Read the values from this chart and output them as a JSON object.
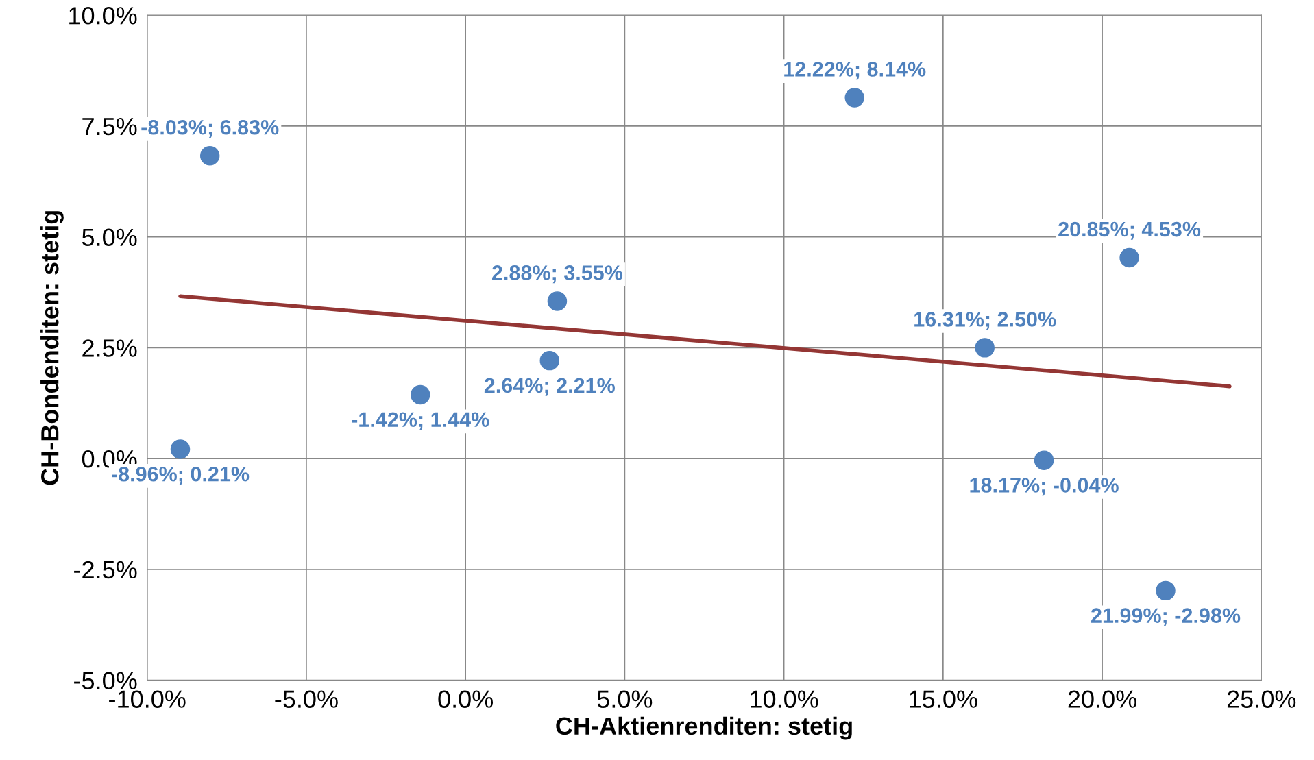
{
  "chart_data": {
    "type": "scatter",
    "xlabel": "CH-Aktienrenditen: stetig",
    "ylabel": "CH-Bondenditen: stetig",
    "xlim": [
      -10,
      25
    ],
    "ylim": [
      -5,
      10
    ],
    "xticks": [
      {
        "value": -10,
        "label": "-10.0%"
      },
      {
        "value": -5,
        "label": "-5.0%"
      },
      {
        "value": 0,
        "label": "0.0%"
      },
      {
        "value": 5,
        "label": "5.0%"
      },
      {
        "value": 10,
        "label": "10.0%"
      },
      {
        "value": 15,
        "label": "15.0%"
      },
      {
        "value": 20,
        "label": "20.0%"
      },
      {
        "value": 25,
        "label": "25.0%"
      }
    ],
    "yticks": [
      {
        "value": -5,
        "label": "-5.0%"
      },
      {
        "value": -2.5,
        "label": "-2.5%"
      },
      {
        "value": 0,
        "label": "0.0%"
      },
      {
        "value": 2.5,
        "label": "2.5%"
      },
      {
        "value": 5,
        "label": "5.0%"
      },
      {
        "value": 7.5,
        "label": "7.5%"
      },
      {
        "value": 10,
        "label": "10.0%"
      }
    ],
    "grid": true,
    "series": [
      {
        "type": "scatter",
        "marker": "circle",
        "color": "#4f81bd",
        "x": [
          -8.03,
          12.22,
          20.85,
          2.88,
          16.31,
          2.64,
          -1.42,
          -8.96,
          18.17,
          21.99
        ],
        "values": [
          6.83,
          8.14,
          4.53,
          3.55,
          2.5,
          2.21,
          1.44,
          0.21,
          -0.04,
          -2.98
        ],
        "value_labels": [
          "-8.03%; 6.83%",
          "12.22%; 8.14%",
          "20.85%; 4.53%",
          "2.88%; 3.55%",
          "16.31%; 2.50%",
          "2.64%; 2.21%",
          "-1.42%; 1.44%",
          "-8.96%; 0.21%",
          "18.17%; -0.04%",
          "21.99%; -2.98%"
        ]
      },
      {
        "type": "line",
        "color": "#943634",
        "x": [
          -8.96,
          24
        ],
        "values": [
          3.66,
          1.63
        ]
      }
    ]
  }
}
